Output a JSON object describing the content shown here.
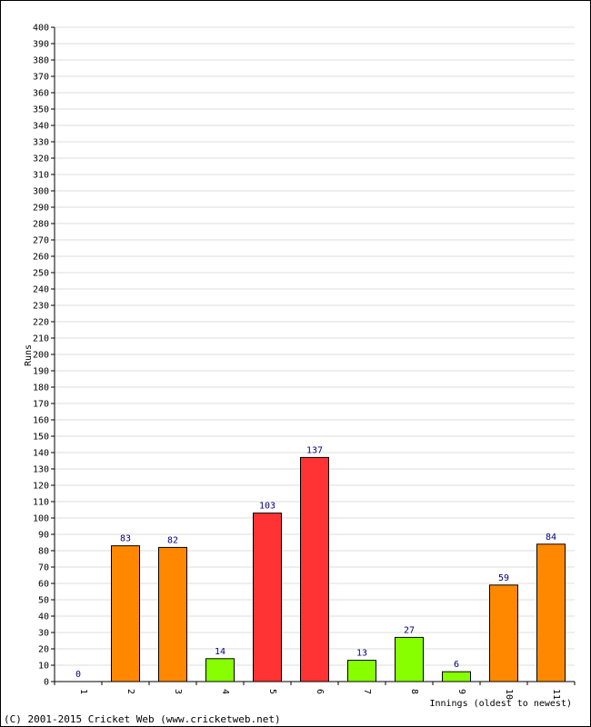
{
  "chart_data": {
    "type": "bar",
    "categories": [
      "1",
      "2",
      "3",
      "4",
      "5",
      "6",
      "7",
      "8",
      "9",
      "10",
      "11"
    ],
    "values": [
      0,
      83,
      82,
      14,
      103,
      137,
      13,
      27,
      6,
      59,
      84
    ],
    "bar_colors": [
      "#ff8800",
      "#ff8800",
      "#ff8800",
      "#88ff00",
      "#ff3333",
      "#ff3333",
      "#88ff00",
      "#88ff00",
      "#88ff00",
      "#ff8800",
      "#ff8800"
    ],
    "ylabel": "Runs",
    "xlabel": "Innings (oldest to newest)",
    "ylim": [
      0,
      400
    ],
    "ytick_step": 10,
    "grid": true,
    "colors": {
      "gridline": "#dddddd",
      "axis": "#000000",
      "data_label": "#000080",
      "bar_outline": "#000000"
    }
  },
  "footer": {
    "copyright": "(C) 2001-2015 Cricket Web (www.cricketweb.net)"
  }
}
